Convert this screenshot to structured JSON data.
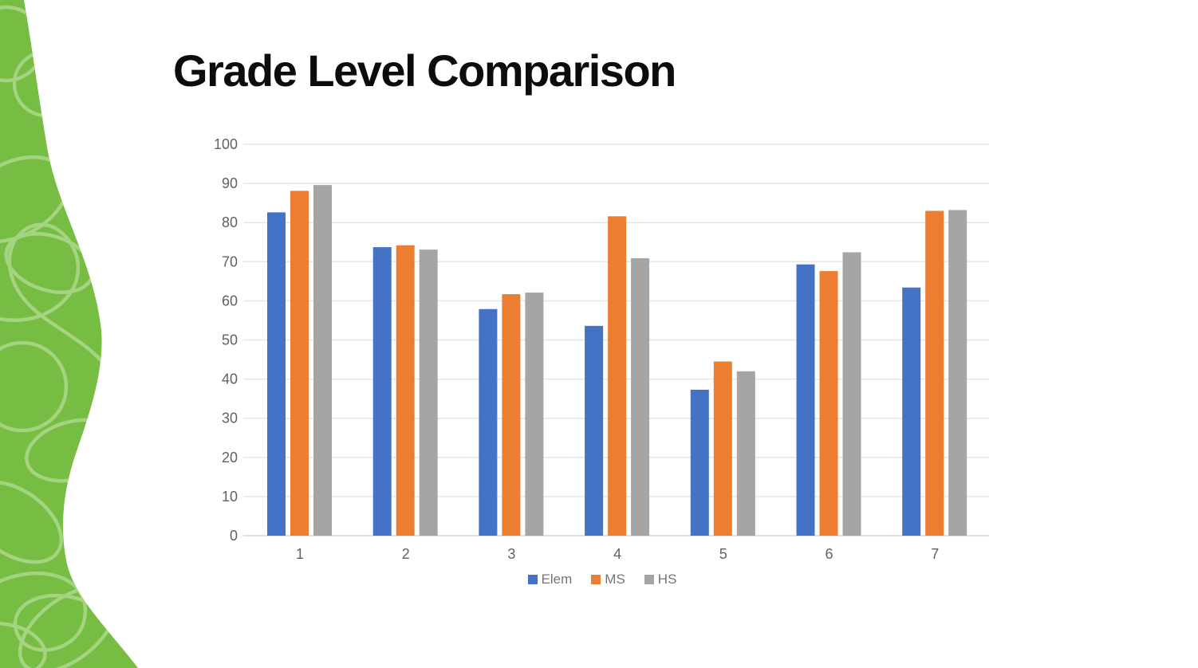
{
  "slide": {
    "title": "Grade Level Comparison"
  },
  "theme": {
    "accent_green": "#77BC43",
    "swirl_green": "#A9D687",
    "background": "#ffffff",
    "title_color": "#0c0c0c",
    "axis_label_color": "#616161",
    "legend_text_color": "#757575",
    "gridline_color": "#e6e6e6",
    "axisline_color": "#d6d6d6"
  },
  "icons": {
    "wave_shape": "decorative-wave-shape"
  },
  "chart_data": {
    "type": "bar",
    "title": "",
    "xlabel": "",
    "ylabel": "",
    "categories": [
      "1",
      "2",
      "3",
      "4",
      "5",
      "6",
      "7"
    ],
    "series": [
      {
        "name": "Elem",
        "color": "#4472C4",
        "values": [
          82.6,
          73.7,
          57.9,
          53.6,
          37.3,
          69.3,
          63.4
        ]
      },
      {
        "name": "MS",
        "color": "#ED7D31",
        "values": [
          88.1,
          74.2,
          61.7,
          81.6,
          44.5,
          67.6,
          83.0
        ]
      },
      {
        "name": "HS",
        "color": "#A5A5A5",
        "values": [
          89.6,
          73.1,
          62.1,
          70.9,
          42.0,
          72.4,
          83.2
        ]
      }
    ],
    "ylim": [
      0,
      100
    ],
    "yticks": [
      0,
      10,
      20,
      30,
      40,
      50,
      60,
      70,
      80,
      90,
      100
    ],
    "grid": true,
    "legend_position": "bottom"
  }
}
